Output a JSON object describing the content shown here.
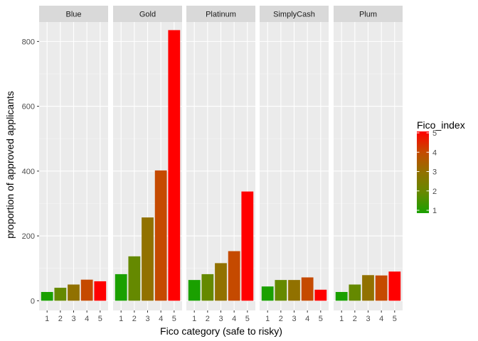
{
  "chart_data": {
    "type": "bar",
    "xlabel": "Fico category (safe to risky)",
    "ylabel": "proportion of approved applicants",
    "categories": [
      "1",
      "2",
      "3",
      "4",
      "5"
    ],
    "ylim": [
      -30,
      860
    ],
    "yticks": [
      0,
      200,
      400,
      600,
      800
    ],
    "grid": true,
    "panels": [
      {
        "name": "Blue",
        "values": [
          27,
          40,
          50,
          65,
          60
        ]
      },
      {
        "name": "Gold",
        "values": [
          82,
          137,
          257,
          402,
          835
        ]
      },
      {
        "name": "Platinum",
        "values": [
          64,
          82,
          116,
          153,
          337
        ]
      },
      {
        "name": "SimplyCash",
        "values": [
          44,
          64,
          64,
          72,
          34
        ]
      },
      {
        "name": "Plum",
        "values": [
          27,
          50,
          79,
          78,
          90
        ]
      }
    ],
    "legend": {
      "title": "Fico_index",
      "ticks": [
        "1",
        "2",
        "3",
        "4",
        "5"
      ],
      "placement": "right",
      "low_color": "#1aa000",
      "high_color": "#ff0000"
    },
    "colors": {
      "panel_bg": "#ebebeb",
      "grid_major": "#ffffff",
      "strip_bg": "#d9d9d9",
      "bar_colors": [
        "#1aa000",
        "#658900",
        "#917100",
        "#c54a00",
        "#ff0000"
      ]
    }
  }
}
